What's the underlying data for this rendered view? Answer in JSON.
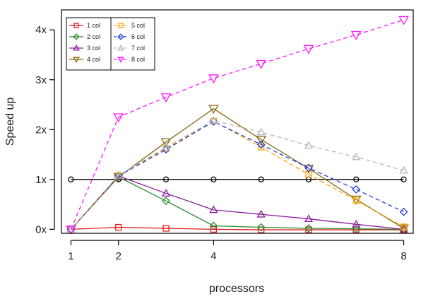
{
  "chart_data": {
    "type": "line",
    "title": "",
    "xlabel": "processors",
    "ylabel": "Speed up",
    "x_ticks": [
      {
        "value": 1,
        "label": "1"
      },
      {
        "value": 2,
        "label": "2"
      },
      {
        "value": 4,
        "label": "4"
      },
      {
        "value": 8,
        "label": "8"
      }
    ],
    "y_ticks": [
      {
        "value": 0,
        "label": "0x"
      },
      {
        "value": 1,
        "label": "1x"
      },
      {
        "value": 2,
        "label": "2x"
      },
      {
        "value": 3,
        "label": "3x"
      },
      {
        "value": 4,
        "label": "4x"
      }
    ],
    "xlim": [
      0.8,
      8.2
    ],
    "ylim": [
      -0.08,
      4.4
    ],
    "reference_line": {
      "y": 1,
      "color": "#000000",
      "x": [
        1,
        2,
        3,
        4,
        5,
        6,
        7,
        8
      ],
      "marker": "circle"
    },
    "legend_position": "top-left",
    "series": [
      {
        "name": "1 col",
        "color": "#e41a1c",
        "marker": "square",
        "dashed": false,
        "x": [
          1,
          2,
          3,
          4,
          5,
          6,
          7,
          8
        ],
        "y": [
          0.0,
          0.04,
          0.02,
          0.0,
          -0.01,
          -0.01,
          -0.01,
          -0.01
        ]
      },
      {
        "name": "2 col",
        "color": "#2e8b2e",
        "marker": "diamond",
        "dashed": false,
        "x": [
          1,
          2,
          3,
          4,
          5,
          6,
          7,
          8
        ],
        "y": [
          0.0,
          1.05,
          0.57,
          0.07,
          0.04,
          0.02,
          0.01,
          0.0
        ]
      },
      {
        "name": "3 col",
        "color": "#8b1a9b",
        "marker": "triangle-up",
        "dashed": false,
        "x": [
          1,
          2,
          3,
          4,
          5,
          6,
          7,
          8
        ],
        "y": [
          0.0,
          1.07,
          0.72,
          0.39,
          0.3,
          0.21,
          0.1,
          0.0
        ]
      },
      {
        "name": "4 col",
        "color": "#8b6914",
        "marker": "triangle-down",
        "dashed": false,
        "x": [
          1,
          2,
          3,
          4,
          5,
          6,
          7,
          8
        ],
        "y": [
          0.0,
          1.05,
          1.75,
          2.42,
          1.8,
          1.22,
          0.6,
          0.02
        ]
      },
      {
        "name": "5 col",
        "color": "#ffa500",
        "marker": "square",
        "dashed": true,
        "x": [
          1,
          2,
          3,
          4,
          5,
          6,
          7,
          8
        ],
        "y": [
          0.0,
          1.08,
          1.62,
          2.17,
          1.65,
          1.1,
          0.58,
          0.05
        ]
      },
      {
        "name": "6 col",
        "color": "#1f3fd8",
        "marker": "diamond",
        "dashed": true,
        "x": [
          1,
          2,
          3,
          4,
          5,
          6,
          7,
          8
        ],
        "y": [
          0.0,
          1.07,
          1.6,
          2.16,
          1.7,
          1.23,
          0.8,
          0.35
        ]
      },
      {
        "name": "7 col",
        "color": "#b8b8b8",
        "marker": "triangle-up",
        "dashed": true,
        "x": [
          1,
          2,
          3,
          4,
          5,
          6,
          7,
          8
        ],
        "y": [
          0.0,
          1.08,
          1.65,
          2.18,
          1.95,
          1.68,
          1.45,
          1.18
        ]
      },
      {
        "name": "8 col",
        "color": "#ff1aff",
        "marker": "triangle-down",
        "dashed": true,
        "x": [
          1,
          2,
          3,
          4,
          5,
          6,
          7,
          8
        ],
        "y": [
          0.0,
          2.25,
          2.65,
          3.03,
          3.32,
          3.62,
          3.9,
          4.2
        ]
      }
    ]
  }
}
